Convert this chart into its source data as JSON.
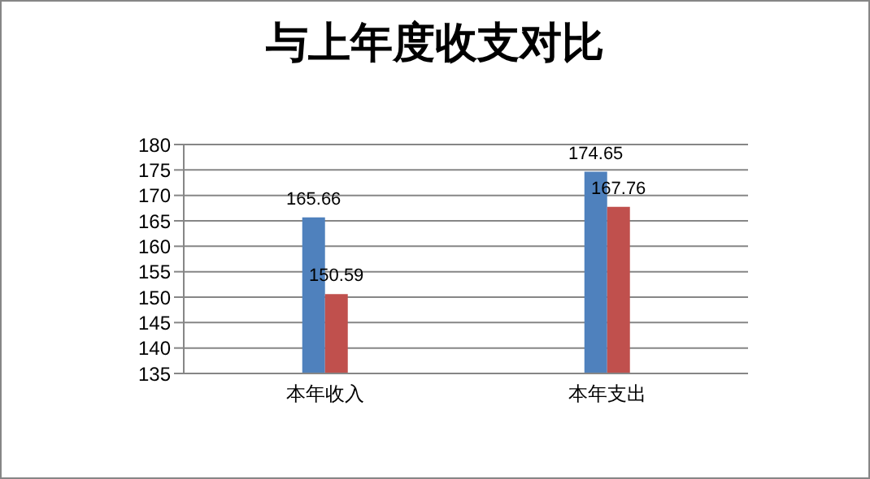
{
  "chart_data": {
    "type": "bar",
    "title": "与上年度收支对比",
    "categories": [
      "本年收入",
      "本年支出"
    ],
    "series": [
      {
        "color": "#4f81bd",
        "values": [
          165.66,
          174.65
        ]
      },
      {
        "color": "#c0504d",
        "values": [
          150.59,
          167.76
        ]
      }
    ],
    "ylim": [
      135,
      180
    ],
    "yticks": [
      135,
      140,
      145,
      150,
      155,
      160,
      165,
      170,
      175,
      180
    ],
    "grid": "y",
    "data_labels": true,
    "legend": false
  }
}
